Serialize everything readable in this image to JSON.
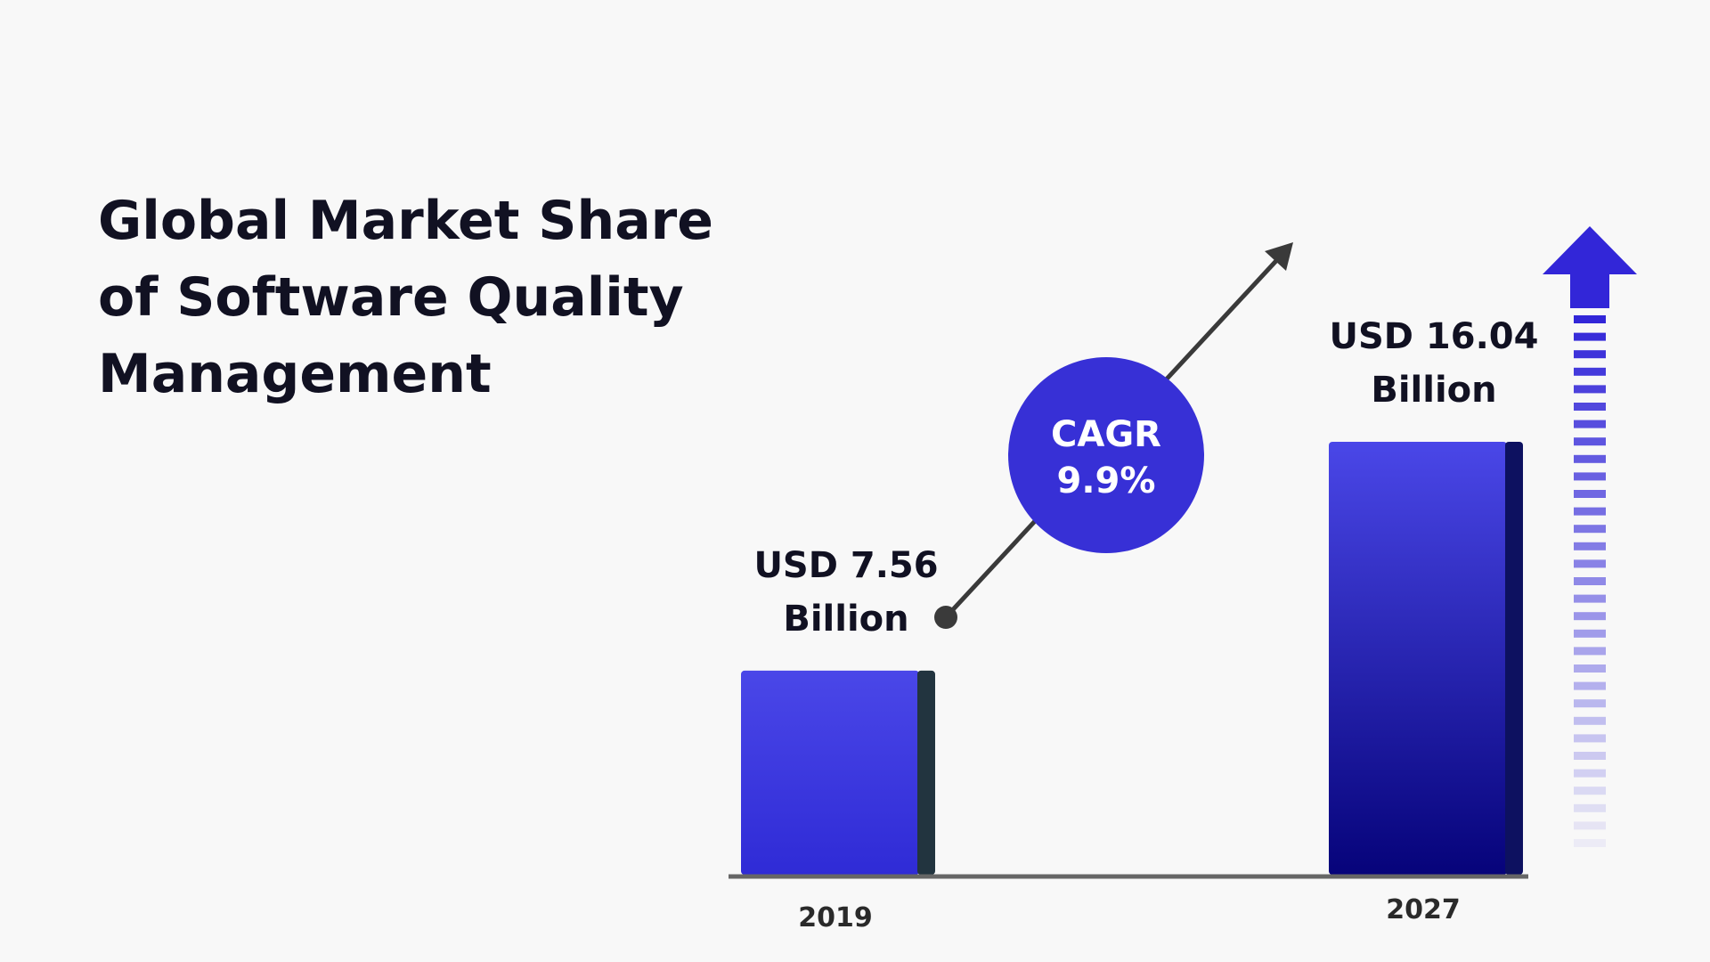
{
  "title": "Global Market Share of Software Quality Management",
  "chart_data": {
    "type": "bar",
    "title": "Global Market Share of Software Quality Management",
    "categories": [
      "2019",
      "2027"
    ],
    "values": [
      7.56,
      16.04
    ],
    "value_labels": [
      [
        "USD 7.56",
        "Billion"
      ],
      [
        "USD 16.04",
        "Billion"
      ]
    ],
    "unit": "USD Billion",
    "annotation": {
      "line1": "CAGR",
      "line2": "9.9%"
    },
    "colors": {
      "bar_top": "#4a47e8",
      "bar_bottom": "#06037a",
      "bar_side": "#0d1160",
      "bar_side_small": "#22343f",
      "cagr_circle": "#3730d6",
      "arrow": "#3a3a3a",
      "axis": "#666666",
      "up_arrow": "#3226d8"
    }
  }
}
